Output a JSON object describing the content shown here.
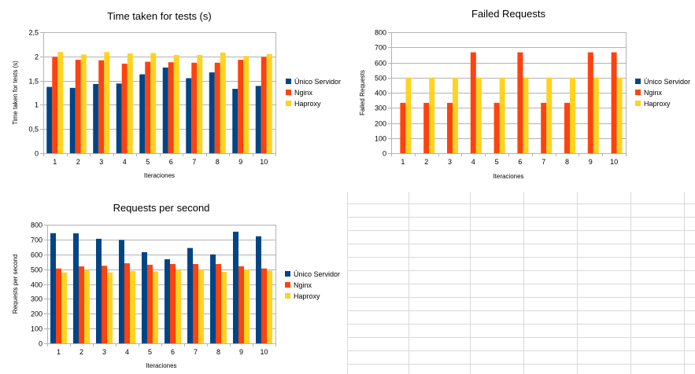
{
  "colors": {
    "unico_servidor": "#004586",
    "nginx": "#ff420e",
    "haproxy": "#ffd320",
    "gridline": "#b3b3b3",
    "sheet_grid": "#d9d9d9"
  },
  "chart_data": [
    {
      "type": "bar",
      "title": "Time taken for tests (s)",
      "xlabel": "Iteraciones",
      "ylabel": "Time taken for tests (s)",
      "ylim": [
        0,
        2.5
      ],
      "yticks": [
        "0",
        "0,5",
        "1",
        "1,5",
        "2",
        "2,5"
      ],
      "grid": true,
      "legend_position": "right",
      "categories": [
        "1",
        "2",
        "3",
        "4",
        "5",
        "6",
        "7",
        "8",
        "9",
        "10"
      ],
      "series": [
        {
          "name": "Único Servidor",
          "color_key": "unico_servidor",
          "values": [
            1.37,
            1.35,
            1.43,
            1.44,
            1.63,
            1.77,
            1.55,
            1.67,
            1.33,
            1.39
          ]
        },
        {
          "name": "Nginx",
          "color_key": "nginx",
          "values": [
            1.99,
            1.93,
            1.92,
            1.85,
            1.89,
            1.88,
            1.87,
            1.87,
            1.93,
            1.99
          ]
        },
        {
          "name": "Haproxy",
          "color_key": "haproxy",
          "values": [
            2.09,
            2.04,
            2.09,
            2.06,
            2.07,
            2.03,
            2.03,
            2.08,
            2.01,
            2.05
          ]
        }
      ]
    },
    {
      "type": "bar",
      "title": "Failed Requests",
      "xlabel": "Iteraciones",
      "ylabel": "Failed Requests",
      "ylim": [
        0,
        800
      ],
      "yticks": [
        "0",
        "100",
        "200",
        "300",
        "400",
        "500",
        "600",
        "700",
        "800"
      ],
      "grid": true,
      "legend_position": "right",
      "categories": [
        "1",
        "2",
        "3",
        "4",
        "5",
        "6",
        "7",
        "8",
        "9",
        "10"
      ],
      "series": [
        {
          "name": "Único Servidor",
          "color_key": "unico_servidor",
          "values": [
            0,
            0,
            0,
            0,
            0,
            0,
            0,
            0,
            0,
            0
          ]
        },
        {
          "name": "Nginx",
          "color_key": "nginx",
          "values": [
            333,
            333,
            333,
            667,
            333,
            667,
            333,
            333,
            667,
            667
          ]
        },
        {
          "name": "Haproxy",
          "color_key": "haproxy",
          "values": [
            500,
            500,
            500,
            500,
            500,
            500,
            500,
            500,
            500,
            500
          ]
        }
      ]
    },
    {
      "type": "bar",
      "title": "Requests per second",
      "xlabel": "Iteraciones",
      "ylabel": "Requests per second",
      "ylim": [
        0,
        800
      ],
      "yticks": [
        "0",
        "100",
        "200",
        "300",
        "400",
        "500",
        "600",
        "700",
        "800"
      ],
      "grid": true,
      "legend_position": "right",
      "categories": [
        "1",
        "2",
        "3",
        "4",
        "5",
        "6",
        "7",
        "8",
        "9",
        "10"
      ],
      "series": [
        {
          "name": "Único Servidor",
          "color_key": "unico_servidor",
          "values": [
            743,
            742,
            705,
            697,
            615,
            567,
            643,
            600,
            753,
            722
          ]
        },
        {
          "name": "Nginx",
          "color_key": "nginx",
          "values": [
            505,
            519,
            523,
            540,
            530,
            535,
            535,
            535,
            520,
            505
          ]
        },
        {
          "name": "Haproxy",
          "color_key": "haproxy",
          "values": [
            478,
            492,
            478,
            488,
            485,
            495,
            495,
            482,
            497,
            490
          ]
        }
      ]
    }
  ]
}
